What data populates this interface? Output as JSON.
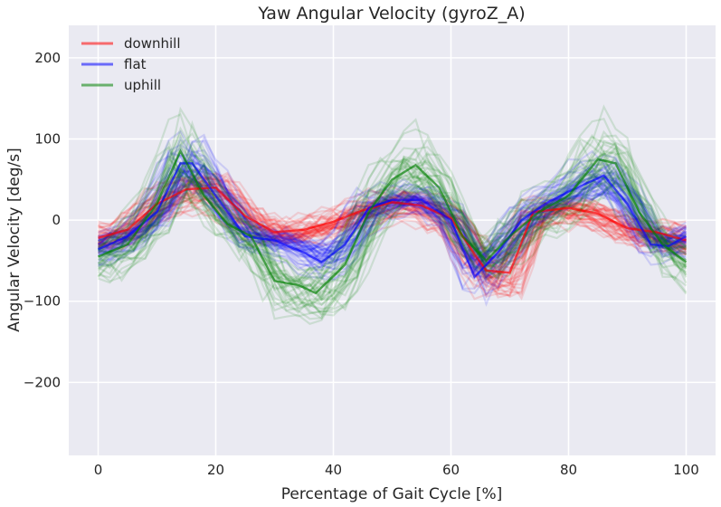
{
  "chart_data": {
    "type": "line",
    "title": "Yaw Angular Velocity (gyroZ_A)",
    "xlabel": "Percentage of Gait Cycle [%]",
    "ylabel": "Angular Velocity [deg/s]",
    "xlim": [
      -5,
      105
    ],
    "ylim": [
      -290,
      240
    ],
    "xticks": [
      0,
      20,
      40,
      60,
      80,
      100
    ],
    "yticks": [
      -200,
      -100,
      0,
      100,
      200
    ],
    "xtick_labels": [
      "0",
      "20",
      "40",
      "60",
      "80",
      "100"
    ],
    "ytick_labels": [
      "−200",
      "−100",
      "0",
      "100",
      "200"
    ],
    "grid": true,
    "legend_position": "top-left",
    "background": "#eaeaf2",
    "series": [
      {
        "name": "downhill",
        "color": "#ff0000",
        "x": [
          0,
          5,
          10,
          15,
          20,
          25,
          30,
          35,
          40,
          45,
          50,
          55,
          60,
          64,
          66,
          70,
          74,
          80,
          85,
          90,
          95,
          100
        ],
        "values": [
          -22,
          -12,
          20,
          38,
          40,
          5,
          -15,
          -12,
          -2,
          12,
          22,
          18,
          2,
          -42,
          -62,
          -65,
          10,
          15,
          8,
          -10,
          -15,
          -25
        ]
      },
      {
        "name": "flat",
        "color": "#0000ff",
        "x": [
          0,
          5,
          10,
          14,
          16,
          20,
          25,
          30,
          35,
          38,
          42,
          46,
          50,
          55,
          60,
          64,
          68,
          72,
          76,
          80,
          86,
          90,
          94,
          97,
          100
        ],
        "values": [
          -36,
          -20,
          10,
          70,
          70,
          30,
          -20,
          -25,
          -40,
          -52,
          -30,
          15,
          25,
          25,
          0,
          -70,
          -40,
          0,
          20,
          35,
          55,
          20,
          -30,
          -32,
          -20
        ]
      },
      {
        "name": "uphill",
        "color": "#008000",
        "x": [
          0,
          5,
          10,
          14,
          18,
          22,
          26,
          30,
          34,
          37,
          42,
          46,
          50,
          54,
          58,
          62,
          66,
          70,
          75,
          80,
          85,
          88,
          92,
          96,
          100
        ],
        "values": [
          -45,
          -30,
          20,
          85,
          30,
          -5,
          -20,
          -75,
          -80,
          -90,
          -55,
          10,
          50,
          68,
          40,
          -20,
          -50,
          -20,
          10,
          30,
          75,
          70,
          10,
          -30,
          -52
        ]
      }
    ]
  }
}
